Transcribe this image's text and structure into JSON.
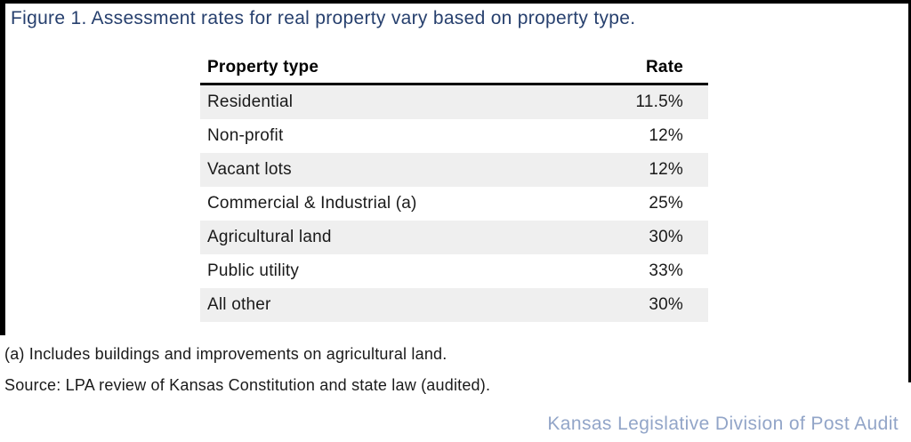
{
  "figure": {
    "title": "Figure 1. Assessment rates for real property vary based on property type."
  },
  "table": {
    "columns": {
      "property_type": "Property type",
      "rate": "Rate"
    },
    "rows": [
      {
        "property_type": "Residential",
        "rate": "11.5%"
      },
      {
        "property_type": "Non-profit",
        "rate": "12%"
      },
      {
        "property_type": "Vacant lots",
        "rate": "12%"
      },
      {
        "property_type": "Commercial & Industrial (a)",
        "rate": "25%"
      },
      {
        "property_type": "Agricultural land",
        "rate": "30%"
      },
      {
        "property_type": "Public utility",
        "rate": "33%"
      },
      {
        "property_type": "All other",
        "rate": "30%"
      }
    ]
  },
  "notes": {
    "footnote": "(a) Includes buildings and improvements on agricultural land.",
    "source": "Source: LPA review of Kansas Constitution and state law (audited)."
  },
  "footer": {
    "attribution": "Kansas Legislative Division of Post Audit"
  },
  "colors": {
    "title_navy": "#27406e",
    "row_stripe": "#efefef",
    "attribution_blue": "#92a5c8",
    "border_black": "#000000"
  }
}
